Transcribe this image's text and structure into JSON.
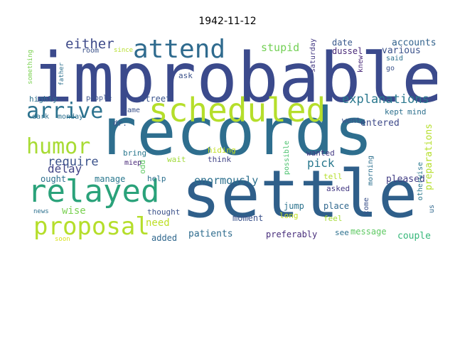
{
  "title": "1942-11-12",
  "chart_data": {
    "type": "wordcloud",
    "title": "1942-11-12",
    "background": "#ffffff",
    "words": [
      {
        "text": "improbable",
        "weight": 100,
        "color": "#3b4a8c"
      },
      {
        "text": "records",
        "weight": 96,
        "color": "#2e6e8e"
      },
      {
        "text": "settle",
        "weight": 90,
        "color": "#2f5f8a"
      },
      {
        "text": "scheduled",
        "weight": 48,
        "color": "#b5de2b"
      },
      {
        "text": "relayed",
        "weight": 45,
        "color": "#2aa27a"
      },
      {
        "text": "attend",
        "weight": 37,
        "color": "#2f6b8e"
      },
      {
        "text": "proposal",
        "weight": 37,
        "color": "#b5de2b"
      },
      {
        "text": "arrive",
        "weight": 32,
        "color": "#2c728e"
      },
      {
        "text": "humor",
        "weight": 32,
        "color": "#a8db34"
      },
      {
        "text": "either",
        "weight": 19,
        "color": "#3e4a89"
      },
      {
        "text": "explanations",
        "weight": 18,
        "color": "#2a788e"
      },
      {
        "text": "require",
        "weight": 17,
        "color": "#3b528b"
      },
      {
        "text": "delay",
        "weight": 16,
        "color": "#414487"
      },
      {
        "text": "pick",
        "weight": 16,
        "color": "#2a788e"
      },
      {
        "text": "enormously",
        "weight": 15,
        "color": "#2d708e"
      },
      {
        "text": "stupid",
        "weight": 15,
        "color": "#73d055"
      },
      {
        "text": "preparations",
        "weight": 15,
        "color": "#b5de2b"
      },
      {
        "text": "wise",
        "weight": 14,
        "color": "#7ad151"
      },
      {
        "text": "need",
        "weight": 14,
        "color": "#bddf26"
      },
      {
        "text": "patients",
        "weight": 13,
        "color": "#2f6c8e"
      },
      {
        "text": "accounts",
        "weight": 13,
        "color": "#33638d"
      },
      {
        "text": "various",
        "weight": 13,
        "color": "#3b528b"
      },
      {
        "text": "pleased",
        "weight": 13,
        "color": "#433e85"
      },
      {
        "text": "couple",
        "weight": 13,
        "color": "#35b779"
      },
      {
        "text": "entered",
        "weight": 13,
        "color": "#3e4a89"
      },
      {
        "text": "jump",
        "weight": 12,
        "color": "#2c738e"
      },
      {
        "text": "place",
        "weight": 12,
        "color": "#31688e"
      },
      {
        "text": "preferably",
        "weight": 12,
        "color": "#472d7b"
      },
      {
        "text": "message",
        "weight": 12,
        "color": "#5ec962"
      },
      {
        "text": "date",
        "weight": 12,
        "color": "#38588c"
      },
      {
        "text": "dussel",
        "weight": 12,
        "color": "#482878"
      },
      {
        "text": "street",
        "weight": 12,
        "color": "#3a548c"
      },
      {
        "text": "ought",
        "weight": 12,
        "color": "#2d708e"
      },
      {
        "text": "manage",
        "weight": 12,
        "color": "#2a788e"
      },
      {
        "text": "moment",
        "weight": 12,
        "color": "#3b528b"
      },
      {
        "text": "added",
        "weight": 12,
        "color": "#31688e"
      },
      {
        "text": "think",
        "weight": 11,
        "color": "#414487"
      },
      {
        "text": "wait",
        "weight": 11,
        "color": "#a0da39"
      },
      {
        "text": "bring",
        "weight": 11,
        "color": "#2a788e"
      },
      {
        "text": "help",
        "weight": 11,
        "color": "#2d708e"
      },
      {
        "text": "highly",
        "weight": 11,
        "color": "#2d708e"
      },
      {
        "text": "ask",
        "weight": 11,
        "color": "#3b528b"
      },
      {
        "text": "kept",
        "weight": 11,
        "color": "#2d708e"
      },
      {
        "text": "mind",
        "weight": 11,
        "color": "#2d708e"
      },
      {
        "text": "went",
        "weight": 11,
        "color": "#3b528b"
      },
      {
        "text": "wanted",
        "weight": 11,
        "color": "#443983"
      },
      {
        "text": "asked",
        "weight": 11,
        "color": "#443983"
      },
      {
        "text": "tell",
        "weight": 11,
        "color": "#b5de2b"
      },
      {
        "text": "feel",
        "weight": 11,
        "color": "#a5db36"
      },
      {
        "text": "long",
        "weight": 11,
        "color": "#c2df23"
      },
      {
        "text": "see",
        "weight": 11,
        "color": "#2d708e"
      },
      {
        "text": "hiding",
        "weight": 11,
        "color": "#c2df23"
      },
      {
        "text": "thought",
        "weight": 11,
        "color": "#3b528b"
      },
      {
        "text": "odd",
        "weight": 11,
        "color": "#5ec962"
      },
      {
        "text": "dr.",
        "weight": 11,
        "color": "#3b528b"
      },
      {
        "text": "came",
        "weight": 10,
        "color": "#3b528b"
      },
      {
        "text": "people",
        "weight": 10,
        "color": "#3b528b"
      },
      {
        "text": "room",
        "weight": 10,
        "color": "#3b528b"
      },
      {
        "text": "dark",
        "weight": 10,
        "color": "#2d708e"
      },
      {
        "text": "monday",
        "weight": 10,
        "color": "#2d708e"
      },
      {
        "text": "miep",
        "weight": 10,
        "color": "#482878"
      },
      {
        "text": "saturday",
        "weight": 10,
        "color": "#443983"
      },
      {
        "text": "morning",
        "weight": 10,
        "color": "#2d708e"
      },
      {
        "text": "possible",
        "weight": 10,
        "color": "#4ac16d"
      },
      {
        "text": "otherwise",
        "weight": 10,
        "color": "#2a788e"
      },
      {
        "text": "come",
        "weight": 10,
        "color": "#3b528b"
      },
      {
        "text": "knew",
        "weight": 10,
        "color": "#482878"
      },
      {
        "text": "said",
        "weight": 10,
        "color": "#2d708e"
      },
      {
        "text": "go",
        "weight": 10,
        "color": "#3b528b"
      },
      {
        "text": "us",
        "weight": 10,
        "color": "#31688e"
      },
      {
        "text": "news",
        "weight": 9,
        "color": "#2d708e"
      },
      {
        "text": "soon",
        "weight": 9,
        "color": "#d8e219"
      },
      {
        "text": "since",
        "weight": 9,
        "color": "#b5de2b"
      },
      {
        "text": "father",
        "weight": 9,
        "color": "#2d708e"
      },
      {
        "text": "something",
        "weight": 9,
        "color": "#7ad151"
      }
    ]
  }
}
